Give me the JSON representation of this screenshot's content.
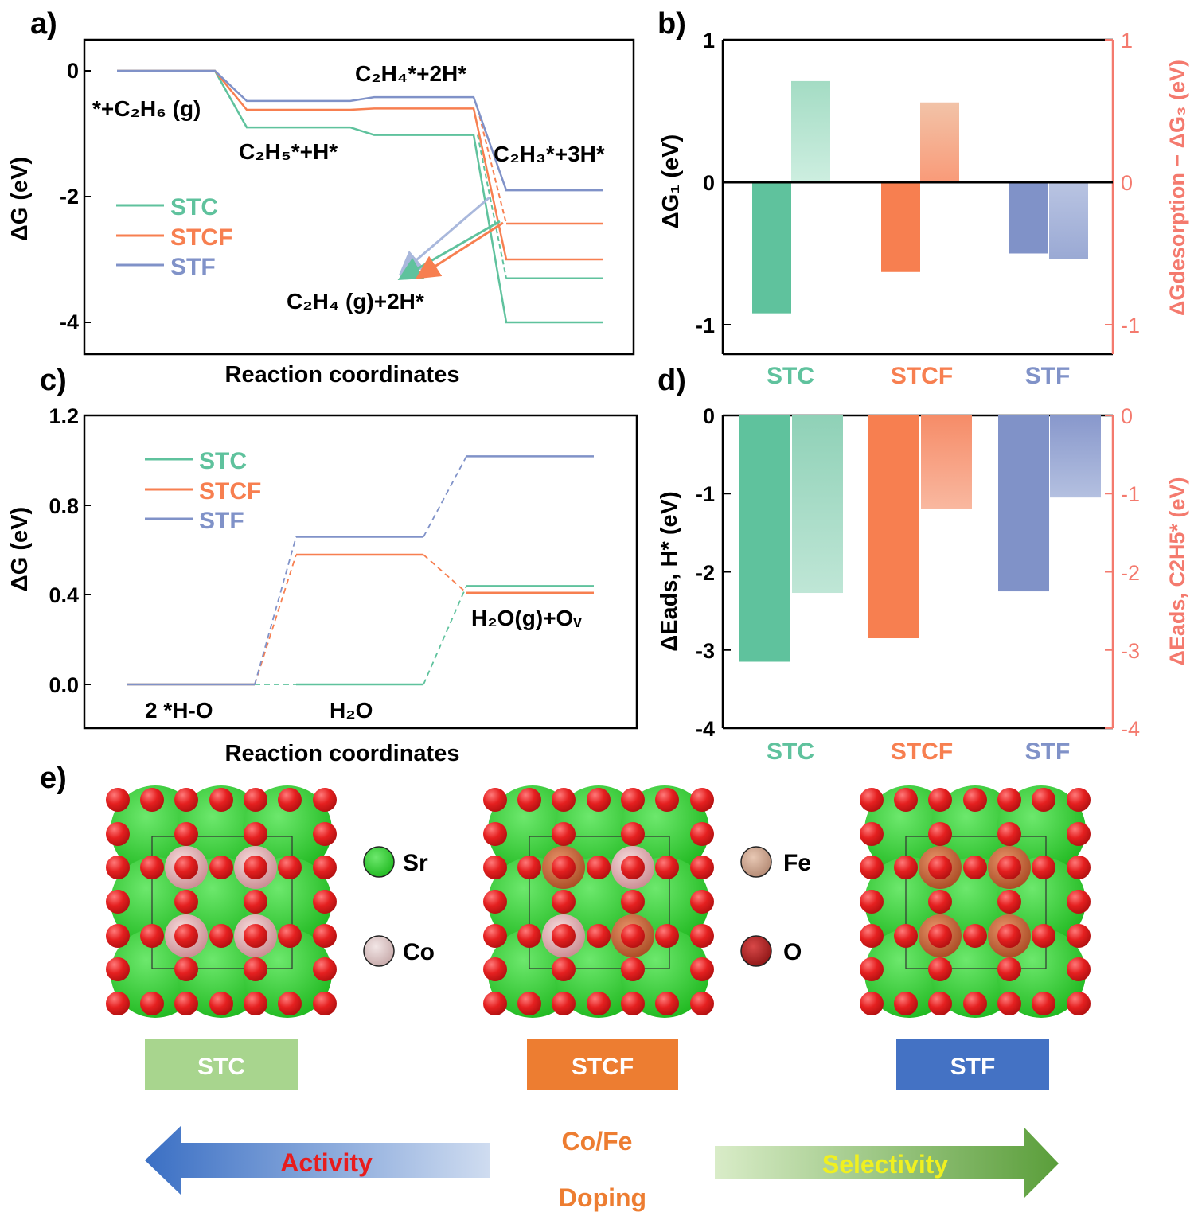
{
  "colors": {
    "stc": "#5fc29d",
    "stcf": "#f77f50",
    "stf": "#8092c8",
    "right_axis": "#f47a6e",
    "sr": "#2fca2f",
    "o": "#e32222",
    "co": "#e2a8a8",
    "fe": "#c8683a",
    "box_stc": "#a8d58e",
    "box_stcf": "#ed7d31",
    "box_stf": "#4472c4"
  },
  "panels": {
    "a": {
      "letter": "a)",
      "ylabel": "ΔG (eV)",
      "xlabel": "Reaction coordinates",
      "yticks": [
        "0",
        "-2",
        "-4"
      ],
      "legend": [
        "STC",
        "STCF",
        "STF"
      ],
      "annotations": {
        "start": "*+C₂H₆ (g)",
        "c2h5": "C₂H₅*+H*",
        "c2h4": "C₂H₄*+2H*",
        "c2h3": "C₂H₃*+3H*",
        "c2h4g": "C₂H₄ (g)+2H*"
      }
    },
    "b": {
      "letter": "b)",
      "ylabel": "ΔG₁ (eV)",
      "ylabel_right": "ΔGdesorption − ΔG₃ (eV)",
      "yticks": [
        "1",
        "0",
        "-1"
      ],
      "yticks_right": [
        "1",
        "0",
        "-1"
      ],
      "categories": [
        "STC",
        "STCF",
        "STF"
      ]
    },
    "c": {
      "letter": "c)",
      "ylabel": "ΔG (eV)",
      "xlabel": "Reaction coordinates",
      "yticks": [
        "1.2",
        "0.8",
        "0.4",
        "0.0"
      ],
      "legend": [
        "STC",
        "STCF",
        "STF"
      ],
      "annotations": {
        "start": "2 *H-O",
        "h2o": "H₂O",
        "end": "H₂O(g)+Oᵥ"
      }
    },
    "d": {
      "letter": "d)",
      "ylabel": "ΔEads, H* (eV)",
      "ylabel_right": "ΔEads, C2H5* (eV)",
      "yticks": [
        "0",
        "-1",
        "-2",
        "-3",
        "-4"
      ],
      "yticks_right": [
        "0",
        "-1",
        "-2",
        "-3",
        "-4"
      ],
      "categories": [
        "STC",
        "STCF",
        "STF"
      ]
    },
    "e": {
      "letter": "e)",
      "legend_left": [
        "Sr",
        "Co"
      ],
      "legend_right": [
        "Fe",
        "O"
      ],
      "boxes": [
        "STC",
        "STCF",
        "STF"
      ],
      "center_top": "Co/Fe",
      "center_bottom": "Doping",
      "arrow_left": "Activity",
      "arrow_right": "Selectivity"
    }
  },
  "chart_data": [
    {
      "panel": "a",
      "type": "line",
      "ylim": [
        -4.5,
        0.5
      ],
      "steps": [
        "*+C2H6 (g)",
        "C2H5*+H*",
        "C2H4*+2H*",
        "C2H3*+3H*"
      ],
      "series": [
        {
          "name": "STC",
          "values": [
            0,
            -0.9,
            -1.02,
            -4.0
          ],
          "desorption": -3.3
        },
        {
          "name": "STCF",
          "values": [
            0,
            -0.62,
            -0.6,
            -3.0
          ],
          "desorption": -2.43
        },
        {
          "name": "STF",
          "values": [
            0,
            -0.48,
            -0.42,
            -1.9
          ],
          "desorption": null
        }
      ]
    },
    {
      "panel": "b",
      "type": "bar",
      "categories": [
        "STC",
        "STCF",
        "STF"
      ],
      "ylim": [
        -1.2,
        1.0
      ],
      "series": [
        {
          "axis": "left",
          "label": "ΔG1",
          "values": [
            -0.92,
            -0.63,
            -0.5
          ]
        },
        {
          "axis": "right",
          "label": "ΔGdesorption − ΔG3",
          "values": [
            0.71,
            0.56,
            -0.54
          ]
        }
      ]
    },
    {
      "panel": "c",
      "type": "line",
      "ylim": [
        -0.2,
        1.2
      ],
      "steps": [
        "2 *H-O",
        "H2O",
        "H2O(g)+Ov"
      ],
      "series": [
        {
          "name": "STC",
          "values": [
            0.0,
            0.0,
            0.44
          ]
        },
        {
          "name": "STCF",
          "values": [
            0.0,
            0.58,
            0.41
          ]
        },
        {
          "name": "STF",
          "values": [
            0.0,
            0.66,
            1.02
          ]
        }
      ]
    },
    {
      "panel": "d",
      "type": "bar",
      "categories": [
        "STC",
        "STCF",
        "STF"
      ],
      "ylim": [
        -4,
        0
      ],
      "series": [
        {
          "axis": "left",
          "label": "ΔEads, H*",
          "values": [
            -3.15,
            -2.85,
            -2.25
          ]
        },
        {
          "axis": "right",
          "label": "ΔEads, C2H5*",
          "values": [
            -2.27,
            -1.2,
            -1.05
          ]
        }
      ]
    }
  ]
}
